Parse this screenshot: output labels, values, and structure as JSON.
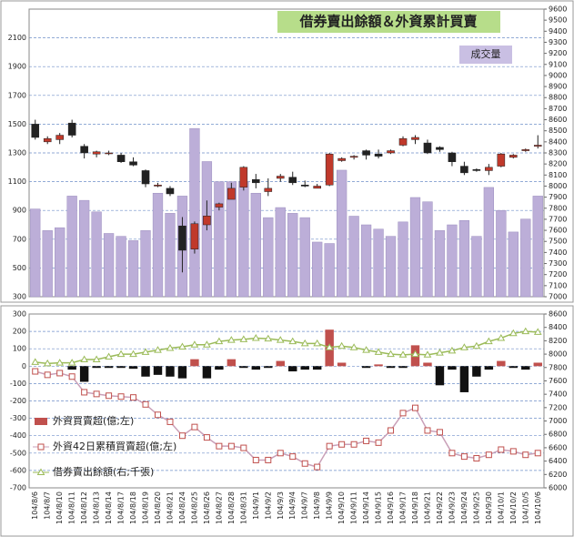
{
  "chart_data": [
    {
      "type": "candlestick",
      "title": "借券賣出餘額＆外資累計買賣",
      "annotation": "成交量",
      "categories": [
        "104/8/6",
        "104/8/7",
        "104/8/10",
        "104/8/11",
        "104/8/12",
        "104/8/13",
        "104/8/14",
        "104/8/17",
        "104/8/18",
        "104/8/19",
        "104/8/20",
        "104/8/21",
        "104/8/24",
        "104/8/25",
        "104/8/26",
        "104/8/27",
        "104/8/28",
        "104/8/31",
        "104/9/1",
        "104/9/2",
        "104/9/3",
        "104/9/4",
        "104/9/7",
        "104/9/8",
        "104/9/9",
        "104/9/10",
        "104/9/11",
        "104/9/14",
        "104/9/15",
        "104/9/16",
        "104/9/17",
        "104/9/18",
        "104/9/21",
        "104/9/22",
        "104/9/23",
        "104/9/24",
        "104/9/25",
        "104/9/30",
        "104/10/1",
        "104/10/2",
        "104/10/5",
        "104/10/6"
      ],
      "volume": {
        "color": "#bcaed8",
        "values": [
          910,
          760,
          780,
          1000,
          970,
          890,
          740,
          720,
          690,
          760,
          1020,
          880,
          1000,
          1470,
          1240,
          1100,
          1100,
          1100,
          1020,
          850,
          920,
          880,
          850,
          680,
          670,
          1180,
          860,
          800,
          770,
          720,
          820,
          990,
          960,
          760,
          800,
          830,
          720,
          1060,
          900,
          750,
          840,
          1000
        ]
      },
      "candles": {
        "up_color": "#c0392b",
        "down_color": "#222222",
        "open": [
          8560,
          8400,
          8420,
          8570,
          8360,
          8290,
          8300,
          8280,
          8220,
          8140,
          8000,
          7980,
          7640,
          7430,
          7650,
          7810,
          7880,
          7990,
          8060,
          7950,
          8070,
          8080,
          8010,
          7980,
          8010,
          8230,
          8260,
          8320,
          8290,
          8300,
          8370,
          8420,
          8390,
          8350,
          8300,
          8180,
          8150,
          8140,
          8180,
          8260,
          8320,
          8360
        ],
        "high": [
          8600,
          8450,
          8480,
          8600,
          8380,
          8320,
          8320,
          8300,
          8260,
          8150,
          8030,
          8000,
          7720,
          7680,
          7870,
          7850,
          8030,
          8180,
          8110,
          8070,
          8110,
          8130,
          8050,
          8020,
          8300,
          8260,
          8280,
          8330,
          8330,
          8330,
          8450,
          8460,
          8420,
          8360,
          8310,
          8220,
          8160,
          8200,
          8300,
          8290,
          8340,
          8460
        ],
        "low": [
          8420,
          8380,
          8380,
          8440,
          8250,
          8260,
          8280,
          8210,
          8180,
          7990,
          7990,
          7910,
          7220,
          7390,
          7600,
          7780,
          7880,
          7960,
          7980,
          7910,
          8040,
          8010,
          7990,
          7980,
          8000,
          8220,
          8240,
          8240,
          8250,
          8290,
          8360,
          8380,
          8290,
          8310,
          8180,
          8100,
          8130,
          8100,
          8170,
          8250,
          8310,
          8340
        ],
        "close": [
          8440,
          8430,
          8460,
          8460,
          8300,
          8310,
          8300,
          8220,
          8190,
          8020,
          8010,
          7930,
          7420,
          7660,
          7730,
          7840,
          7980,
          8170,
          8030,
          7980,
          8090,
          8030,
          8000,
          8000,
          8290,
          8250,
          8270,
          8280,
          8270,
          8320,
          8430,
          8440,
          8300,
          8330,
          8220,
          8120,
          8140,
          8170,
          8290,
          8280,
          8330,
          8370
        ]
      },
      "ylim": [
        300,
        2300
      ],
      "yticks": [
        300,
        500,
        700,
        900,
        1100,
        1300,
        1500,
        1700,
        1900,
        2100
      ],
      "y2lim": [
        7000,
        9600
      ],
      "y2ticks": [
        7000,
        7100,
        7200,
        7300,
        7400,
        7500,
        7600,
        7700,
        7800,
        7900,
        8000,
        8100,
        8200,
        8300,
        8400,
        8500,
        8600,
        8700,
        8800,
        8900,
        9000,
        9100,
        9200,
        9300,
        9400,
        9500,
        9600
      ],
      "grid": true
    },
    {
      "type": "bar-line",
      "series": [
        {
          "name": "外資買賣超(億;左)",
          "color": "#c0504d",
          "negative_color": "#111111",
          "values": [
            0,
            0,
            0,
            -20,
            -90,
            -10,
            -10,
            -10,
            -15,
            -60,
            -50,
            -60,
            -70,
            40,
            -70,
            -20,
            40,
            -10,
            -20,
            -10,
            30,
            -30,
            -20,
            -20,
            210,
            20,
            0,
            -10,
            10,
            -10,
            -10,
            120,
            20,
            -110,
            -20,
            -150,
            -60,
            -20,
            30,
            -10,
            -20,
            20
          ]
        },
        {
          "name": "外資42日累積買賣超(億;左)",
          "color": "#c9a0b8",
          "values": [
            -30,
            -50,
            -40,
            -60,
            -150,
            -160,
            -170,
            -175,
            -180,
            -220,
            -280,
            -320,
            -400,
            -350,
            -410,
            -460,
            -460,
            -470,
            -540,
            -540,
            -500,
            -520,
            -560,
            -580,
            -460,
            -450,
            -450,
            -430,
            -440,
            -370,
            -270,
            -240,
            -370,
            -380,
            -500,
            -520,
            -530,
            -510,
            -480,
            -490,
            -510,
            -500
          ]
        },
        {
          "name": "借券賣出餘額(右;千張)",
          "color": "#9bbb59",
          "axis": "y2",
          "values": [
            7880,
            7860,
            7870,
            7870,
            7920,
            7920,
            7960,
            8000,
            8000,
            8030,
            8060,
            8090,
            8110,
            8140,
            8140,
            8190,
            8210,
            8220,
            8240,
            8230,
            8210,
            8190,
            8160,
            8160,
            8100,
            8120,
            8100,
            8060,
            8030,
            8000,
            7990,
            8000,
            7990,
            8020,
            8050,
            8100,
            8120,
            8190,
            8240,
            8310,
            8340,
            8330
          ]
        }
      ],
      "ylim": [
        -700,
        300
      ],
      "yticks": [
        -700,
        -600,
        -500,
        -400,
        -300,
        -200,
        -100,
        0,
        100,
        200,
        300
      ],
      "y2lim": [
        6000,
        8600
      ],
      "y2ticks": [
        6000,
        6200,
        6400,
        6600,
        6800,
        7000,
        7200,
        7400,
        7600,
        7800,
        8000,
        8200,
        8400,
        8600
      ],
      "grid": true
    }
  ]
}
